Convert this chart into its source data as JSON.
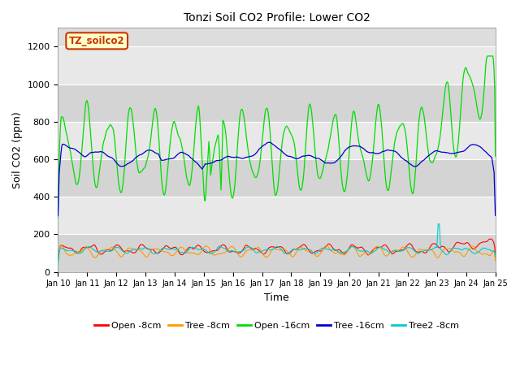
{
  "title": "Tonzi Soil CO2 Profile: Lower CO2",
  "xlabel": "Time",
  "ylabel": "Soil CO2 (ppm)",
  "ylim": [
    0,
    1300
  ],
  "yticks": [
    0,
    200,
    400,
    600,
    800,
    1000,
    1200
  ],
  "annotation_text": "TZ_soilco2",
  "annotation_bg": "#ffffcc",
  "annotation_border": "#cc3300",
  "fig_bg": "#ffffff",
  "plot_bg": "#dddddd",
  "lines": {
    "open_8cm": {
      "color": "#ff0000",
      "lw": 0.8,
      "label": "Open -8cm"
    },
    "tree_8cm": {
      "color": "#ff9900",
      "lw": 0.8,
      "label": "Tree -8cm"
    },
    "open_16cm": {
      "color": "#00dd00",
      "lw": 0.9,
      "label": "Open -16cm"
    },
    "tree_16cm": {
      "color": "#0000cc",
      "lw": 0.9,
      "label": "Tree -16cm"
    },
    "tree2_8cm": {
      "color": "#00cccc",
      "lw": 0.8,
      "label": "Tree2 -8cm"
    }
  },
  "n_points": 720,
  "x_start": 10,
  "x_end": 25,
  "xtick_labels": [
    "Jan 10",
    "Jan 11",
    "Jan 12",
    "Jan 13",
    "Jan 14",
    "Jan 15",
    "Jan 16",
    "Jan 17",
    "Jan 18",
    "Jan 19",
    "Jan 20",
    "Jan 21",
    "Jan 22",
    "Jan 23",
    "Jan 24",
    "Jan 25"
  ],
  "xtick_positions": [
    10,
    11,
    12,
    13,
    14,
    15,
    16,
    17,
    18,
    19,
    20,
    21,
    22,
    23,
    24,
    25
  ],
  "grid_colors": [
    "#cccccc",
    "#e8e8e8"
  ],
  "band_colors": [
    "#d4d4d4",
    "#e8e8e8"
  ]
}
